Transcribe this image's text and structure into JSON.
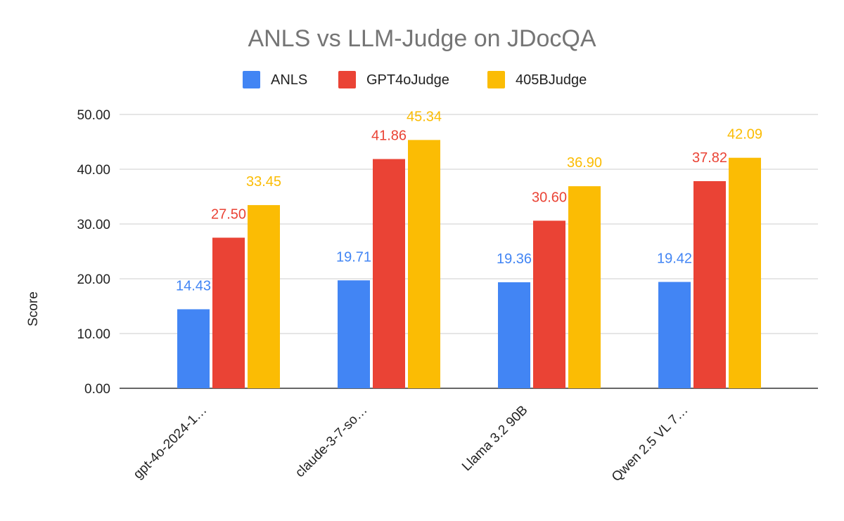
{
  "chart_data": {
    "type": "bar",
    "title": "ANLS vs LLM-Judge on JDocQA",
    "xlabel": "",
    "ylabel": "Score",
    "ylim": [
      0,
      50
    ],
    "yticks": [
      "0.00",
      "10.00",
      "20.00",
      "30.00",
      "40.00",
      "50.00"
    ],
    "grid": true,
    "legend_position": "top",
    "categories": [
      "gpt-4o-2024-1…",
      "claude-3-7-so…",
      "Llama 3.2 90B",
      "Qwen 2.5 VL 7…"
    ],
    "series": [
      {
        "name": "ANLS",
        "color": "#4285F4",
        "values": [
          14.43,
          19.71,
          19.36,
          19.42
        ],
        "labels": [
          "14.43",
          "19.71",
          "19.36",
          "19.42"
        ]
      },
      {
        "name": "GPT4oJudge",
        "color": "#EA4335",
        "values": [
          27.5,
          41.86,
          30.6,
          37.82
        ],
        "labels": [
          "27.50",
          "41.86",
          "30.60",
          "37.82"
        ]
      },
      {
        "name": "405BJudge",
        "color": "#FBBC04",
        "values": [
          33.45,
          45.34,
          36.9,
          42.09
        ],
        "labels": [
          "33.45",
          "45.34",
          "36.90",
          "42.09"
        ]
      }
    ]
  }
}
